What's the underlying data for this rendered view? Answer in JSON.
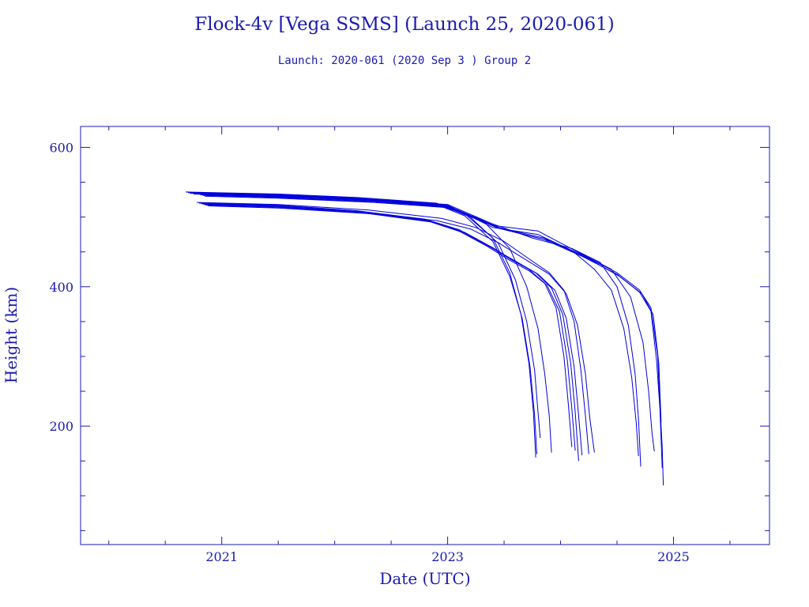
{
  "chart_data": {
    "type": "line",
    "title": "Flock-4v [Vega SSMS] (Launch 25, 2020-061)",
    "subtitle": "Launch: 2020-061  (2020 Sep  3 )  Group 2",
    "xlabel": "Date (UTC)",
    "ylabel": "Height (km)",
    "xlim": [
      2019.75,
      2025.85
    ],
    "ylim": [
      30,
      630
    ],
    "x_ticks": [
      2021,
      2023,
      2025
    ],
    "x_tick_labels": [
      "2021",
      "2023",
      "2025"
    ],
    "y_ticks": [
      200,
      400,
      600
    ],
    "y_tick_labels": [
      "200",
      "400",
      "600"
    ],
    "grid": false,
    "line_color": "#0000dd",
    "axis_color": "#1a1ab3",
    "series": [
      {
        "x": [
          2020.68,
          2021.5,
          2022.2,
          2022.9,
          2023.15,
          2023.4,
          2023.55,
          2023.65,
          2023.72,
          2023.76,
          2023.78
        ],
        "y": [
          536,
          533,
          528,
          520,
          505,
          470,
          420,
          360,
          290,
          220,
          155
        ]
      },
      {
        "x": [
          2020.7,
          2021.5,
          2022.2,
          2022.9,
          2023.15,
          2023.4,
          2023.55,
          2023.66,
          2023.73,
          2023.77,
          2023.79
        ],
        "y": [
          535,
          532,
          527,
          518,
          502,
          465,
          415,
          355,
          285,
          215,
          160
        ]
      },
      {
        "x": [
          2020.72,
          2021.5,
          2022.25,
          2022.95,
          2023.2,
          2023.45,
          2023.6,
          2023.7,
          2023.77,
          2023.8,
          2023.82
        ],
        "y": [
          534,
          531,
          526,
          517,
          500,
          462,
          410,
          350,
          280,
          220,
          183
        ]
      },
      {
        "x": [
          2020.75,
          2021.5,
          2022.3,
          2022.95,
          2023.3,
          2023.55,
          2023.7,
          2023.8,
          2023.86,
          2023.9,
          2023.92
        ],
        "y": [
          533,
          530,
          525,
          515,
          497,
          455,
          400,
          340,
          275,
          215,
          162
        ]
      },
      {
        "x": [
          2020.8,
          2021.5,
          2022.2,
          2022.8,
          2023.1,
          2023.35,
          2023.55,
          2023.72,
          2023.86,
          2023.96,
          2024.03,
          2024.07,
          2024.1
        ],
        "y": [
          520,
          517,
          509,
          497,
          482,
          460,
          440,
          425,
          405,
          370,
          300,
          230,
          170
        ]
      },
      {
        "x": [
          2020.82,
          2021.5,
          2022.2,
          2022.8,
          2023.1,
          2023.35,
          2023.55,
          2023.72,
          2023.88,
          2023.99,
          2024.06,
          2024.1,
          2024.13
        ],
        "y": [
          519,
          516,
          508,
          496,
          480,
          458,
          438,
          423,
          402,
          365,
          295,
          225,
          165
        ]
      },
      {
        "x": [
          2020.84,
          2021.5,
          2022.2,
          2022.85,
          2023.15,
          2023.4,
          2023.6,
          2023.78,
          2023.92,
          2024.02,
          2024.09,
          2024.13,
          2024.16
        ],
        "y": [
          518,
          515,
          507,
          494,
          478,
          456,
          436,
          420,
          398,
          360,
          290,
          220,
          150
        ]
      },
      {
        "x": [
          2020.86,
          2021.5,
          2022.25,
          2022.85,
          2023.15,
          2023.4,
          2023.62,
          2023.8,
          2023.95,
          2024.05,
          2024.12,
          2024.16,
          2024.19
        ],
        "y": [
          517,
          514,
          506,
          493,
          477,
          455,
          435,
          418,
          395,
          355,
          285,
          215,
          158
        ]
      },
      {
        "x": [
          2020.78,
          2021.5,
          2022.3,
          2022.95,
          2023.25,
          2023.5,
          2023.72,
          2023.9,
          2024.03,
          2024.12,
          2024.18,
          2024.22,
          2024.25
        ],
        "y": [
          521,
          518,
          510,
          498,
          485,
          465,
          440,
          420,
          395,
          350,
          280,
          215,
          160
        ]
      },
      {
        "x": [
          2020.88,
          2021.5,
          2022.3,
          2022.9,
          2023.2,
          2023.45,
          2023.7,
          2023.9,
          2024.05,
          2024.15,
          2024.22,
          2024.26,
          2024.3
        ],
        "y": [
          516,
          513,
          505,
          495,
          483,
          463,
          438,
          418,
          390,
          345,
          275,
          210,
          162
        ]
      },
      {
        "x": [
          2020.75,
          2021.5,
          2022.3,
          2023.0,
          2023.4,
          2023.75,
          2024.1,
          2024.35,
          2024.5,
          2024.6,
          2024.66,
          2024.69,
          2024.71
        ],
        "y": [
          535,
          532,
          526,
          518,
          490,
          470,
          455,
          435,
          400,
          345,
          275,
          210,
          142
        ]
      },
      {
        "x": [
          2020.77,
          2021.5,
          2022.3,
          2023.0,
          2023.4,
          2023.8,
          2024.1,
          2024.3,
          2024.45,
          2024.56,
          2024.63,
          2024.67,
          2024.69
        ],
        "y": [
          534,
          531,
          525,
          517,
          485,
          475,
          452,
          425,
          395,
          340,
          270,
          205,
          157
        ]
      },
      {
        "x": [
          2020.79,
          2021.5,
          2022.3,
          2023.0,
          2023.4,
          2023.8,
          2024.15,
          2024.45,
          2024.62,
          2024.73,
          2024.78,
          2024.81,
          2024.83
        ],
        "y": [
          533,
          530,
          524,
          516,
          488,
          480,
          450,
          425,
          385,
          320,
          250,
          190,
          164
        ]
      },
      {
        "x": [
          2020.81,
          2021.5,
          2022.3,
          2023.0,
          2023.45,
          2023.85,
          2024.2,
          2024.5,
          2024.7,
          2024.8,
          2024.86,
          2024.88,
          2024.9,
          2024.91
        ],
        "y": [
          532,
          529,
          523,
          515,
          485,
          470,
          445,
          420,
          395,
          370,
          300,
          230,
          170,
          115
        ]
      },
      {
        "x": [
          2020.83,
          2021.5,
          2022.3,
          2023.0,
          2023.45,
          2023.85,
          2024.2,
          2024.5,
          2024.7,
          2024.8,
          2024.85,
          2024.88,
          2024.9
        ],
        "y": [
          531,
          528,
          522,
          514,
          484,
          468,
          443,
          418,
          392,
          365,
          295,
          225,
          140
        ]
      },
      {
        "x": [
          2020.85,
          2021.5,
          2022.35,
          2023.05,
          2023.5,
          2023.9,
          2024.25,
          2024.52,
          2024.72,
          2024.82,
          2024.87,
          2024.89
        ],
        "y": [
          530,
          527,
          521,
          513,
          482,
          466,
          440,
          415,
          390,
          360,
          290,
          205
        ]
      }
    ]
  }
}
